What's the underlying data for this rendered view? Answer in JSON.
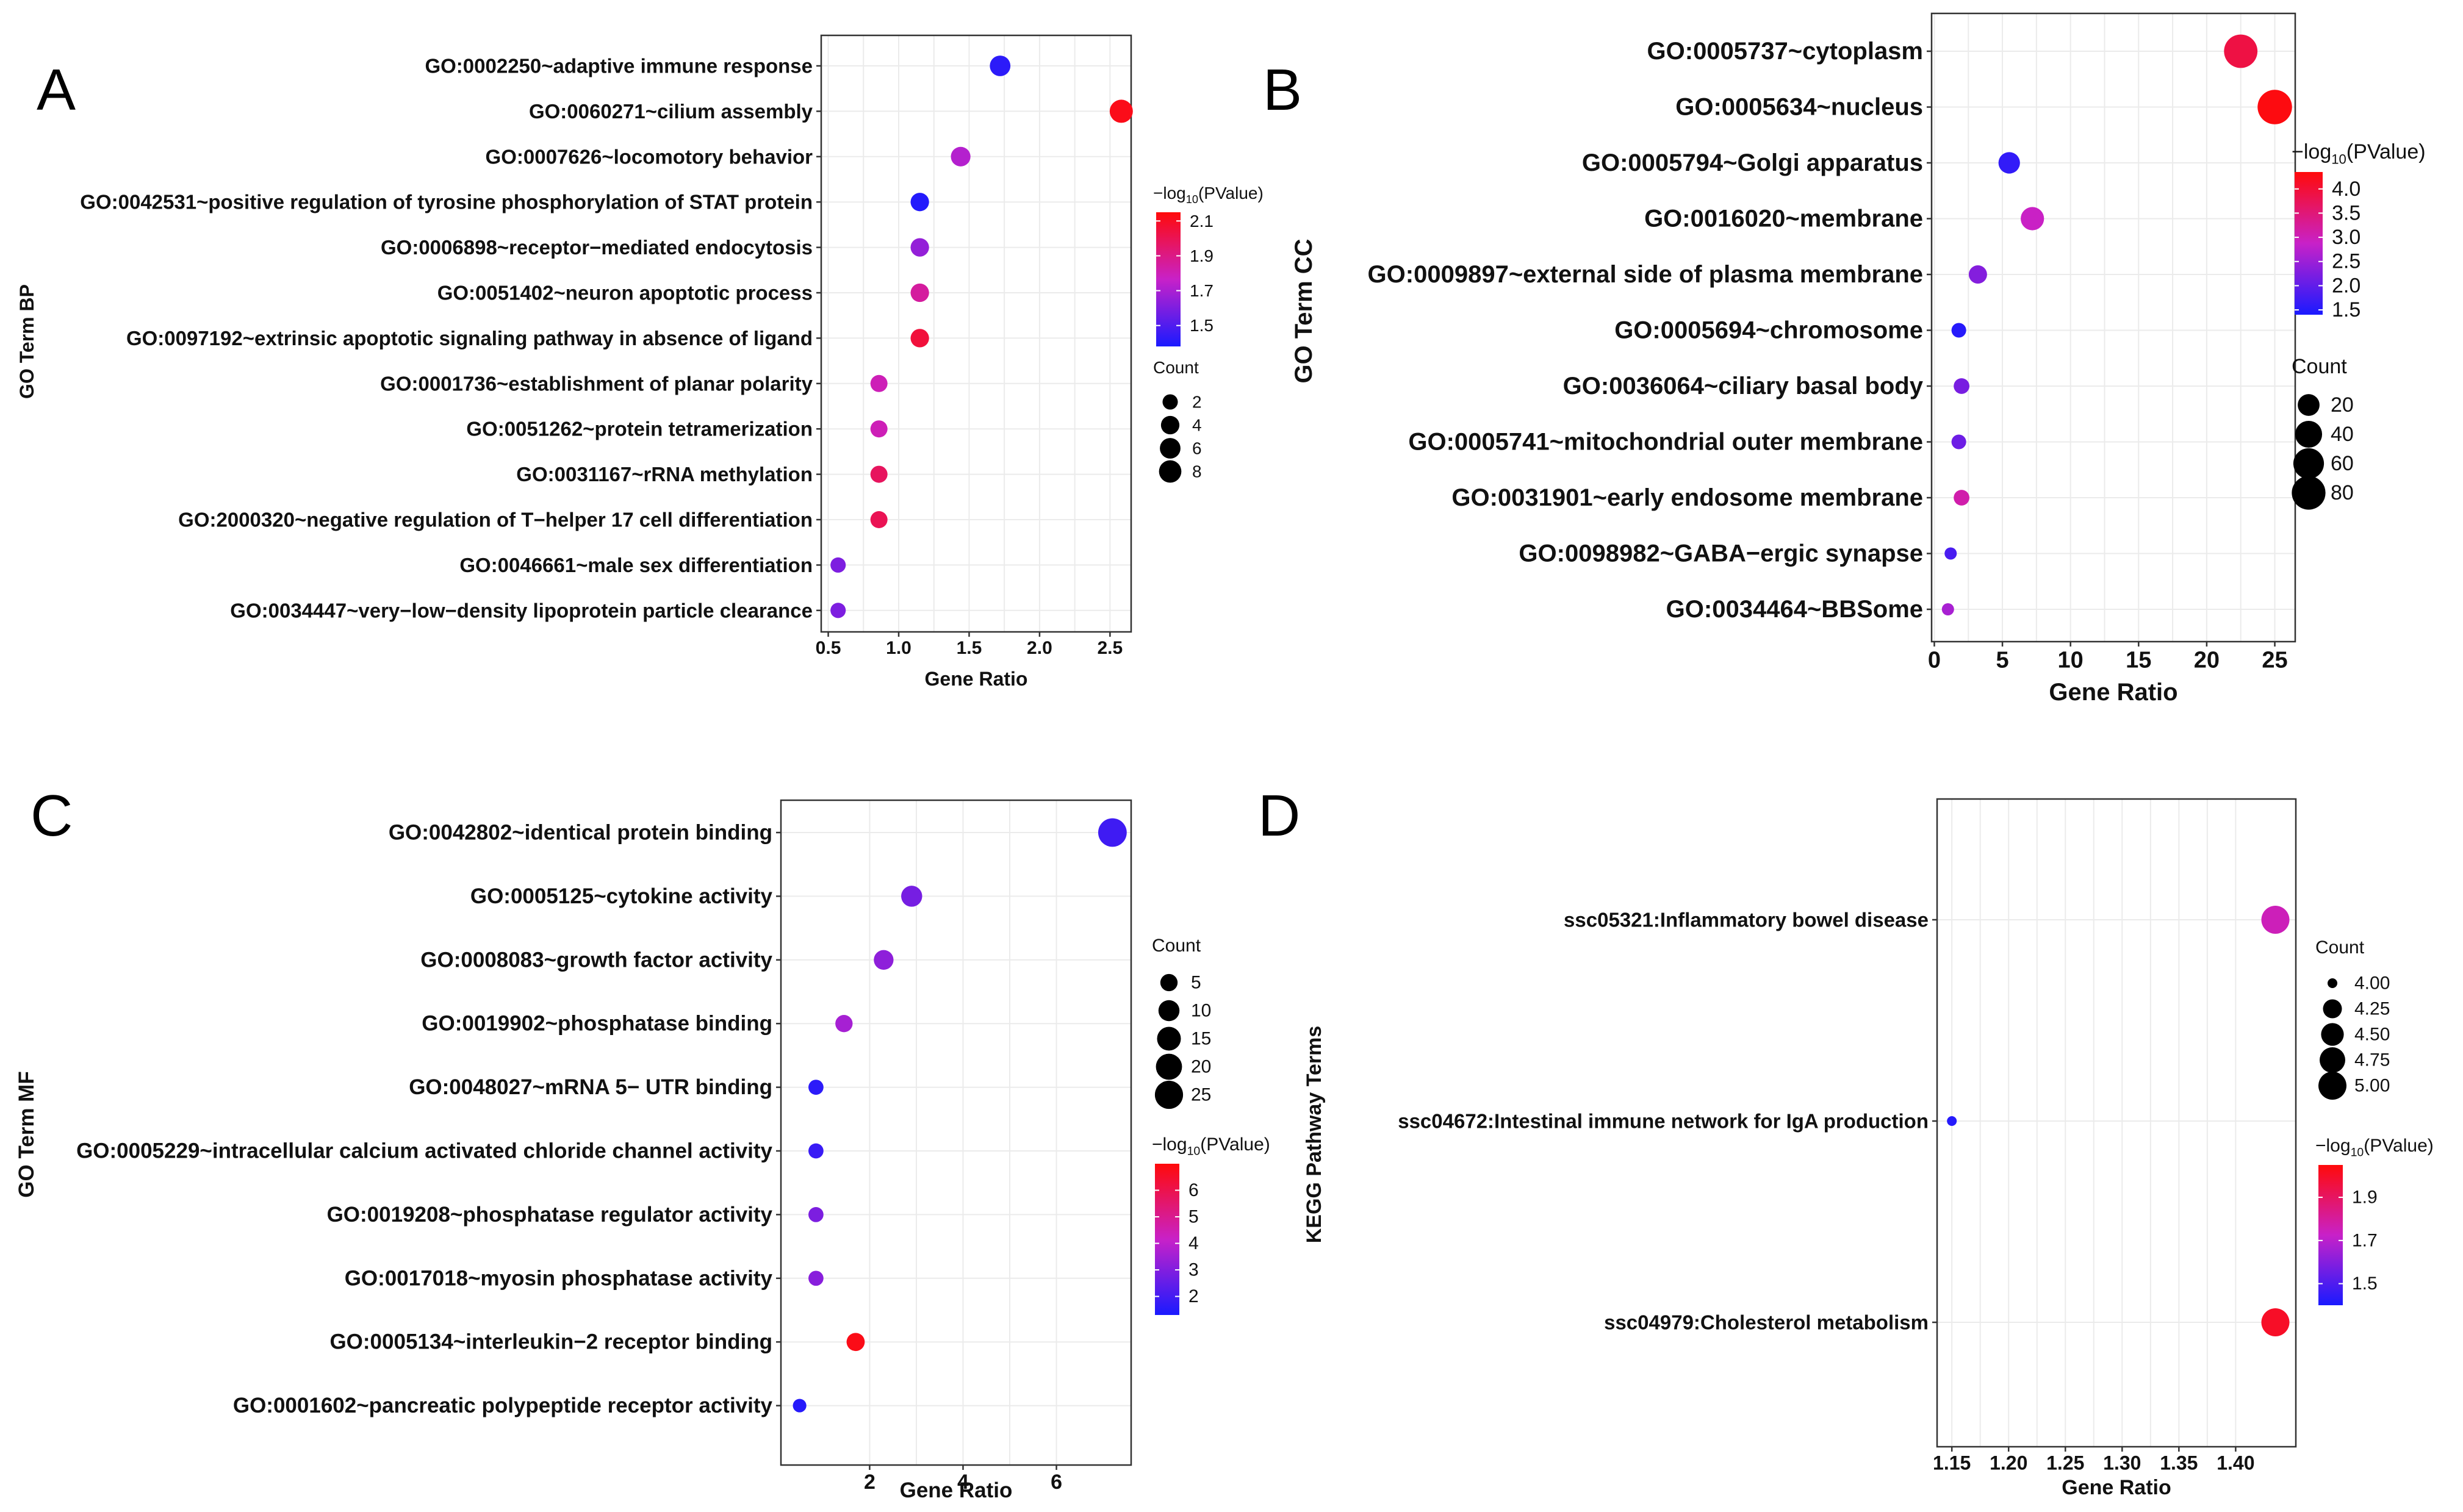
{
  "colors": {
    "low": "#1a1aff",
    "mid": "#c821c8",
    "high": "#ff0a0a"
  },
  "panels": [
    {
      "letter": "A",
      "ylabel": "GO Term BP",
      "count_legend": {
        "title": "Count",
        "labels": [
          "2",
          "4",
          "6",
          "8"
        ],
        "values": [
          2,
          4,
          6,
          8
        ]
      },
      "color_legend": {
        "title_prefix": "−log",
        "title_sub": "10",
        "title_suffix": "(PValue)",
        "labels": [
          "2.1",
          "1.9",
          "1.7",
          "1.5"
        ],
        "values": [
          2.1,
          1.9,
          1.7,
          1.5
        ]
      },
      "chart_data": {
        "type": "scatter",
        "title": "",
        "xlabel": "Gene Ratio",
        "ylabel": "GO Term BP",
        "xlim": [
          0.45,
          2.65
        ],
        "xticks": [
          0.5,
          1.0,
          1.5,
          2.0,
          2.5
        ],
        "xtick_labels": [
          "0.5",
          "1.0",
          "1.5",
          "2.0",
          "2.5"
        ],
        "color_range": [
          1.38,
          2.15
        ],
        "size_range": [
          1,
          9
        ],
        "terms": [
          "GO:0002250~adaptive immune response",
          "GO:0060271~cilium assembly",
          "GO:0007626~locomotory behavior",
          "GO:0042531~positive regulation of tyrosine phosphorylation of STAT protein",
          "GO:0006898~receptor−mediated endocytosis",
          "GO:0051402~neuron apoptotic process",
          "GO:0097192~extrinsic apoptotic signaling pathway in absence of ligand",
          "GO:0001736~establishment of planar polarity",
          "GO:0051262~protein tetramerization",
          "GO:0031167~rRNA methylation",
          "GO:2000320~negative regulation of T−helper 17 cell differentiation",
          "GO:0046661~male sex differentiation",
          "GO:0034447~very−low−density lipoprotein particle clearance"
        ],
        "x": [
          1.72,
          2.58,
          1.44,
          1.15,
          1.15,
          1.15,
          1.15,
          0.86,
          0.86,
          0.86,
          0.86,
          0.57,
          0.57
        ],
        "count": [
          6,
          9,
          5,
          4,
          4,
          4,
          4,
          3,
          3,
          3,
          3,
          2,
          2
        ],
        "neglog10p": [
          1.42,
          2.12,
          1.72,
          1.4,
          1.65,
          1.85,
          2.05,
          1.8,
          1.8,
          1.98,
          2.0,
          1.6,
          1.6
        ]
      }
    },
    {
      "letter": "B",
      "ylabel": "GO Term CC",
      "count_legend": {
        "title": "Count",
        "labels": [
          "20",
          "40",
          "60",
          "80"
        ],
        "values": [
          20,
          40,
          60,
          80
        ]
      },
      "color_legend": {
        "title_prefix": "−log",
        "title_sub": "10",
        "title_suffix": "(PValue)",
        "labels": [
          "4.0",
          "3.5",
          "3.0",
          "2.5",
          "2.0",
          "1.5"
        ],
        "values": [
          4.0,
          3.5,
          3.0,
          2.5,
          2.0,
          1.5
        ]
      },
      "chart_data": {
        "type": "scatter",
        "title": "",
        "xlabel": "Gene Ratio",
        "ylabel": "GO Term CC",
        "xlim": [
          -0.2,
          26.5
        ],
        "xticks": [
          0,
          5,
          10,
          15,
          20,
          25
        ],
        "xtick_labels": [
          "0",
          "5",
          "10",
          "15",
          "20",
          "25"
        ],
        "color_range": [
          1.4,
          4.35
        ],
        "size_range": [
          5,
          92
        ],
        "terms": [
          "GO:0005737~cytoplasm",
          "GO:0005634~nucleus",
          "GO:0005794~Golgi apparatus",
          "GO:0016020~membrane",
          "GO:0009897~external side of plasma membrane",
          "GO:0005694~chromosome",
          "GO:0036064~ciliary basal body",
          "GO:0005741~mitochondrial outer membrane",
          "GO:0031901~early endosome membrane",
          "GO:0098982~GABA−ergic synapse",
          "GO:0034464~BBSome"
        ],
        "x": [
          22.5,
          25.0,
          5.5,
          7.2,
          3.2,
          1.8,
          2.0,
          1.8,
          2.0,
          1.2,
          1.0
        ],
        "count": [
          78,
          85,
          19,
          25,
          11,
          6,
          7,
          6,
          7,
          4,
          3
        ],
        "neglog10p": [
          3.9,
          4.3,
          1.6,
          2.9,
          2.3,
          1.5,
          2.2,
          2.1,
          3.1,
          1.8,
          2.6
        ]
      }
    },
    {
      "letter": "C",
      "ylabel": "GO Term MF",
      "count_legend": {
        "title": "Count",
        "labels": [
          "5",
          "10",
          "15",
          "20",
          "25"
        ],
        "values": [
          5,
          10,
          15,
          20,
          25
        ]
      },
      "color_legend": {
        "title_prefix": "−log",
        "title_sub": "10",
        "title_suffix": "(PValue)",
        "labels": [
          "6",
          "5",
          "4",
          "3",
          "2"
        ],
        "values": [
          6,
          5,
          4,
          3,
          2
        ]
      },
      "chart_data": {
        "type": "scatter",
        "title": "",
        "xlabel": "Gene Ratio",
        "ylabel": "GO Term MF",
        "xlim": [
          0.1,
          7.6
        ],
        "xticks": [
          2,
          4,
          6
        ],
        "xtick_labels": [
          "2",
          "4",
          "6"
        ],
        "color_range": [
          1.3,
          7.0
        ],
        "size_range": [
          1,
          28
        ],
        "terms": [
          "GO:0042802~identical protein binding",
          "GO:0005125~cytokine activity",
          "GO:0008083~growth factor activity",
          "GO:0019902~phosphatase binding",
          "GO:0048027~mRNA 5− UTR binding",
          "GO:0005229~intracellular calcium activated chloride channel activity",
          "GO:0019208~phosphatase regulator activity",
          "GO:0017018~myosin phosphatase activity",
          "GO:0005134~interleukin−2 receptor binding",
          "GO:0001602~pancreatic polypeptide receptor activity"
        ],
        "x": [
          7.2,
          2.9,
          2.3,
          1.45,
          0.85,
          0.85,
          0.85,
          0.85,
          1.7,
          0.5
        ],
        "count": [
          26,
          10,
          8,
          5,
          3,
          3,
          3,
          3,
          6,
          2
        ],
        "neglog10p": [
          1.9,
          2.8,
          3.2,
          3.6,
          1.6,
          1.8,
          2.9,
          3.1,
          6.8,
          1.5
        ]
      }
    },
    {
      "letter": "D",
      "ylabel": "KEGG Pathway Terms",
      "count_legend": {
        "title": "Count",
        "labels": [
          "4.00",
          "4.25",
          "4.50",
          "4.75",
          "5.00"
        ],
        "values": [
          4.0,
          4.25,
          4.5,
          4.75,
          5.0
        ]
      },
      "color_legend": {
        "title_prefix": "−log",
        "title_sub": "10",
        "title_suffix": "(PValue)",
        "labels": [
          "1.9",
          "1.7",
          "1.5"
        ],
        "values": [
          1.9,
          1.7,
          1.5
        ]
      },
      "chart_data": {
        "type": "scatter",
        "title": "",
        "xlabel": "Gene Ratio",
        "ylabel": "KEGG Pathway Terms",
        "xlim": [
          1.137,
          1.453
        ],
        "xticks": [
          1.15,
          1.2,
          1.25,
          1.3,
          1.35,
          1.4
        ],
        "xtick_labels": [
          "1.15",
          "1.20",
          "1.25",
          "1.30",
          "1.35",
          "1.40"
        ],
        "color_range": [
          1.4,
          2.05
        ],
        "size_range": [
          4.0,
          5.0
        ],
        "terms": [
          "ssc05321:Inflammatory bowel disease",
          "ssc04672:Intestinal immune network for IgA production",
          "ssc04979:Cholesterol metabolism"
        ],
        "x": [
          1.435,
          1.15,
          1.435
        ],
        "count": [
          5,
          4,
          5
        ],
        "neglog10p": [
          1.75,
          1.42,
          2.0
        ]
      }
    }
  ]
}
